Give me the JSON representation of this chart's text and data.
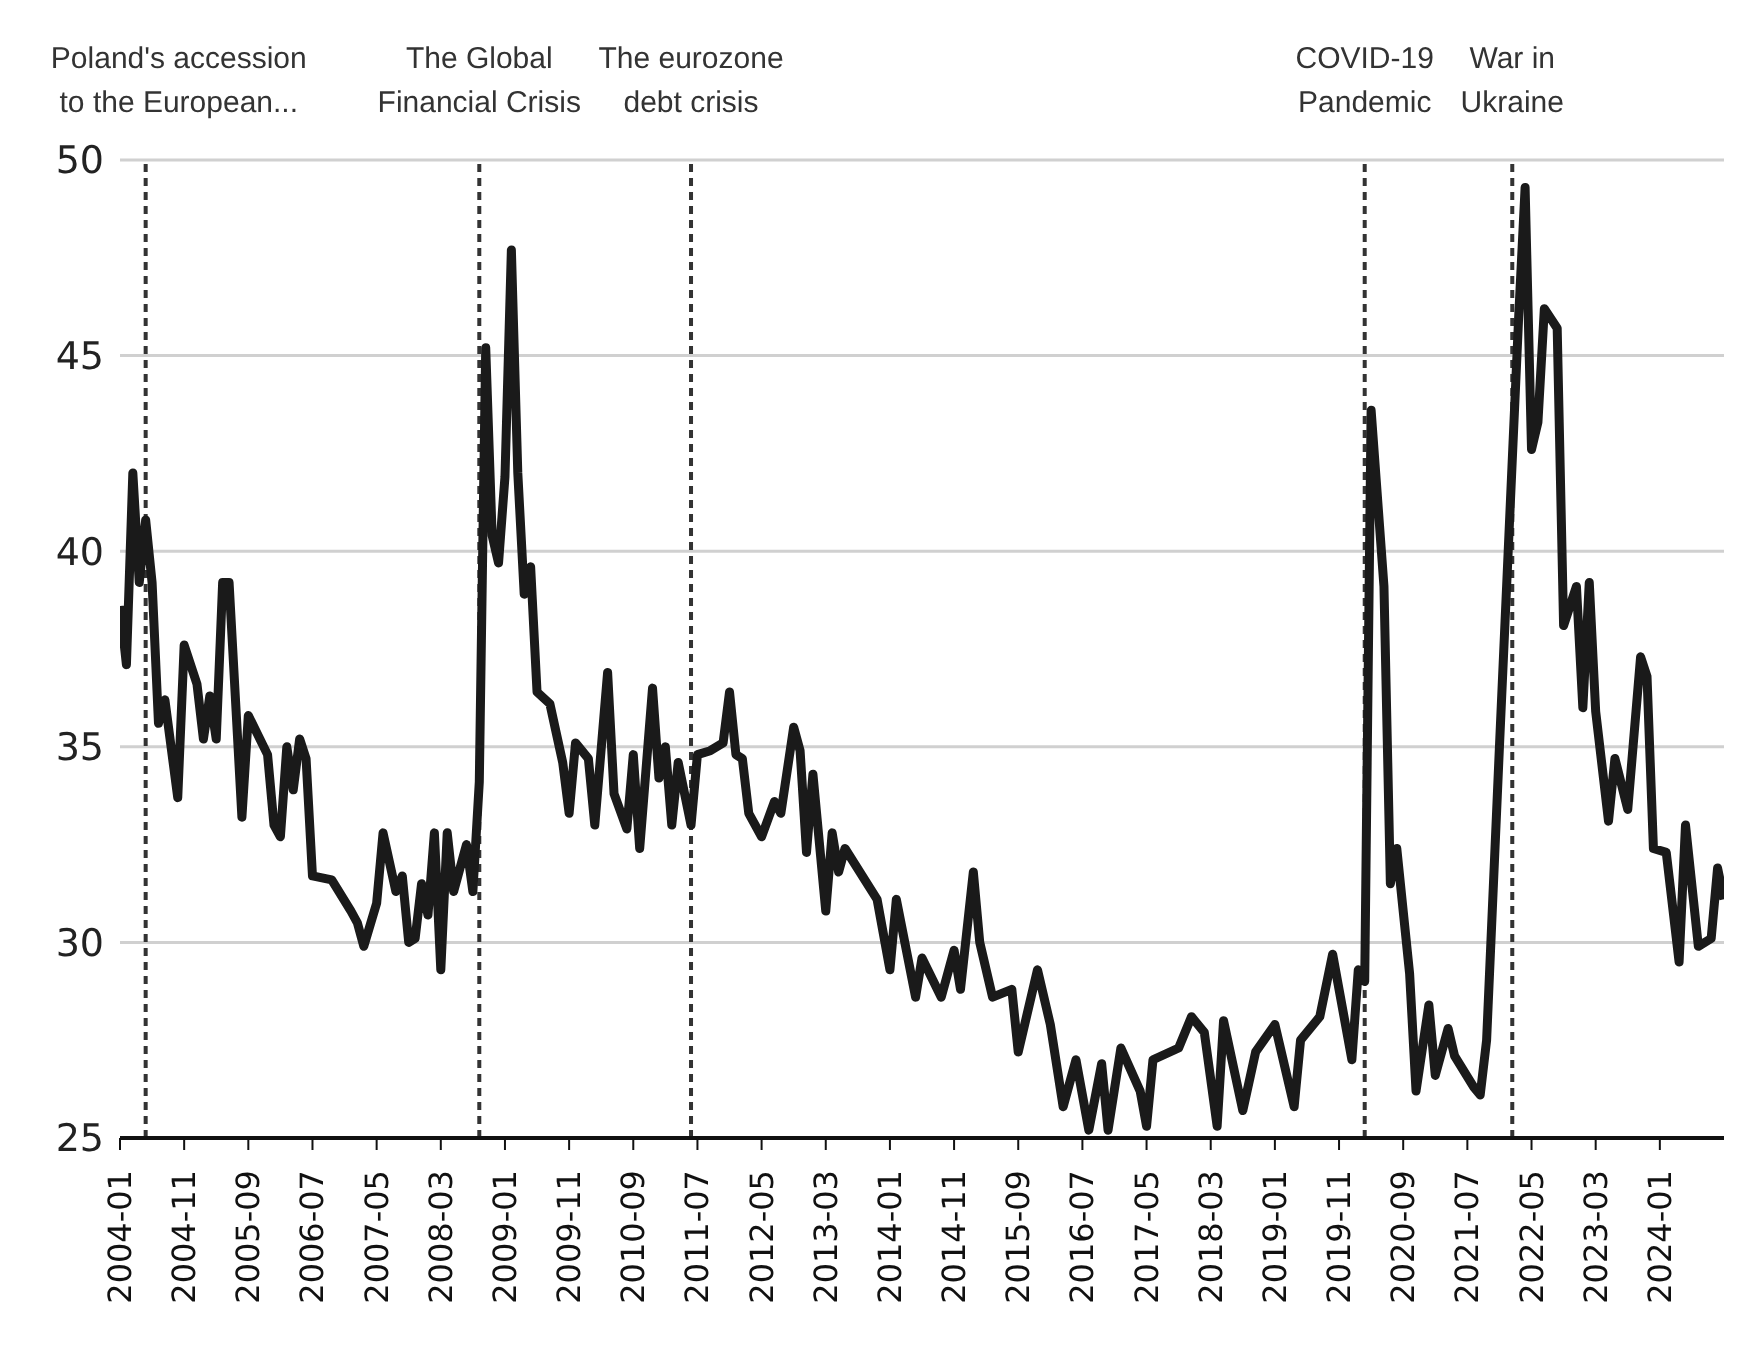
{
  "chart_data": {
    "type": "line",
    "x": [
      "2004-01",
      "2004-02",
      "2004-03",
      "2004-04",
      "2004-05",
      "2004-06",
      "2004-07",
      "2004-08",
      "2004-10",
      "2004-11",
      "2005-01",
      "2005-02",
      "2005-03",
      "2005-04",
      "2005-05",
      "2005-06",
      "2005-08",
      "2005-09",
      "2005-12",
      "2006-01",
      "2006-02",
      "2006-03",
      "2006-04",
      "2006-05",
      "2006-06",
      "2006-07",
      "2006-10",
      "2007-01",
      "2007-02",
      "2007-03",
      "2007-05",
      "2007-06",
      "2007-08",
      "2007-09",
      "2007-10",
      "2007-11",
      "2007-12",
      "2008-01",
      "2008-02",
      "2008-03",
      "2008-04",
      "2008-05",
      "2008-07",
      "2008-08",
      "2008-09",
      "2008-10",
      "2008-11",
      "2008-12",
      "2009-01",
      "2009-02",
      "2009-03",
      "2009-04",
      "2009-05",
      "2009-06",
      "2009-08",
      "2009-10",
      "2009-11",
      "2009-12",
      "2010-02",
      "2010-03",
      "2010-05",
      "2010-06",
      "2010-08",
      "2010-09",
      "2010-10",
      "2010-12",
      "2011-01",
      "2011-02",
      "2011-03",
      "2011-04",
      "2011-06",
      "2011-07",
      "2011-09",
      "2011-11",
      "2011-12",
      "2012-01",
      "2012-02",
      "2012-03",
      "2012-05",
      "2012-07",
      "2012-08",
      "2012-10",
      "2012-11",
      "2012-12",
      "2013-01",
      "2013-03",
      "2013-04",
      "2013-05",
      "2013-06",
      "2013-11",
      "2014-01",
      "2014-02",
      "2014-05",
      "2014-06",
      "2014-09",
      "2014-11",
      "2014-12",
      "2015-02",
      "2015-03",
      "2015-05",
      "2015-08",
      "2015-09",
      "2015-12",
      "2016-02",
      "2016-04",
      "2016-06",
      "2016-08",
      "2016-10",
      "2016-11",
      "2017-01",
      "2017-04",
      "2017-05",
      "2017-06",
      "2017-10",
      "2017-12",
      "2018-02",
      "2018-04",
      "2018-05",
      "2018-08",
      "2018-10",
      "2019-01",
      "2019-04",
      "2019-05",
      "2019-08",
      "2019-10",
      "2020-01",
      "2020-02",
      "2020-03",
      "2020-04",
      "2020-06",
      "2020-07",
      "2020-08",
      "2020-10",
      "2020-11",
      "2021-01",
      "2021-02",
      "2021-04",
      "2021-05",
      "2021-08",
      "2021-09",
      "2021-10",
      "2021-12",
      "2022-03",
      "2022-04",
      "2022-05",
      "2022-06",
      "2022-07",
      "2022-09",
      "2022-10",
      "2022-12",
      "2023-01",
      "2023-02",
      "2023-03",
      "2023-05",
      "2023-06",
      "2023-08",
      "2023-10",
      "2023-11",
      "2023-12",
      "2024-02",
      "2024-04",
      "2024-05",
      "2024-07",
      "2024-09",
      "2024-10",
      "2024-11"
    ],
    "series": [
      {
        "color": "#1a1a1a",
        "values": [
          38.6,
          37.1,
          42.0,
          39.2,
          40.8,
          39.2,
          35.6,
          36.2,
          33.7,
          37.6,
          36.6,
          35.2,
          36.3,
          35.2,
          39.2,
          39.2,
          33.2,
          35.8,
          34.8,
          33.0,
          32.7,
          35.0,
          33.9,
          35.2,
          34.7,
          31.7,
          31.6,
          30.8,
          30.5,
          29.9,
          31.0,
          32.8,
          31.3,
          31.7,
          30.0,
          30.1,
          31.5,
          30.7,
          32.8,
          29.3,
          32.8,
          31.3,
          32.5,
          31.3,
          34.1,
          45.2,
          40.4,
          39.7,
          41.9,
          47.7,
          42.0,
          38.9,
          39.6,
          36.4,
          36.1,
          34.6,
          33.3,
          35.1,
          34.7,
          33.0,
          36.9,
          33.8,
          32.9,
          34.8,
          32.4,
          36.5,
          34.2,
          35.0,
          33.0,
          34.6,
          33.0,
          34.8,
          34.9,
          35.1,
          36.4,
          34.8,
          34.7,
          33.3,
          32.7,
          33.6,
          33.3,
          35.5,
          34.9,
          32.3,
          34.3,
          30.8,
          32.8,
          31.8,
          32.4,
          31.1,
          29.3,
          31.1,
          28.6,
          29.6,
          28.6,
          29.8,
          28.8,
          31.8,
          30.0,
          28.6,
          28.8,
          27.2,
          29.3,
          27.9,
          25.8,
          27.0,
          25.2,
          26.9,
          25.2,
          27.3,
          26.2,
          25.3,
          27.0,
          27.3,
          28.1,
          27.7,
          25.3,
          28.0,
          25.7,
          27.2,
          27.9,
          25.8,
          27.5,
          28.1,
          29.7,
          27.0,
          29.3,
          29.0,
          43.6,
          39.1,
          31.5,
          32.4,
          29.2,
          26.2,
          28.4,
          26.6,
          27.8,
          27.1,
          26.3,
          26.1,
          27.5,
          35.0,
          46.0,
          49.3,
          42.6,
          43.3,
          46.2,
          45.7,
          38.1,
          39.1,
          36.0,
          39.2,
          35.9,
          33.1,
          34.7,
          33.4,
          37.3,
          36.8,
          32.4,
          32.3,
          29.5,
          33.0,
          29.9,
          30.1,
          31.9,
          31.1
        ]
      }
    ],
    "xlim": [
      "2004-01",
      "2024-11"
    ],
    "xticks": [
      "2004-01",
      "2004-11",
      "2005-09",
      "2006-07",
      "2007-05",
      "2008-03",
      "2009-01",
      "2009-11",
      "2010-09",
      "2011-07",
      "2012-05",
      "2013-03",
      "2014-01",
      "2014-11",
      "2015-09",
      "2016-07",
      "2017-05",
      "2018-03",
      "2019-01",
      "2019-11",
      "2020-09",
      "2021-07",
      "2022-05",
      "2023-03",
      "2024-01"
    ],
    "ylim": [
      25,
      50
    ],
    "yticks": [
      25,
      30,
      35,
      40,
      45,
      50
    ],
    "grid": "y",
    "line_style": "solid",
    "ref_lines": [
      {
        "axis": "x",
        "value": "2004-05",
        "label": "Poland's accession to the European...",
        "color": "#333333",
        "line_style": "dashed"
      },
      {
        "axis": "x",
        "value": "2008-09",
        "label": "The Global Financial Crisis",
        "color": "#333333",
        "line_style": "dashed"
      },
      {
        "axis": "x",
        "value": "2011-06",
        "label": "The eurozone debt crisis",
        "color": "#333333",
        "line_style": "dashed"
      },
      {
        "axis": "x",
        "value": "2020-03",
        "label": "COVID-19 Pandemic",
        "color": "#333333",
        "line_style": "dashed"
      },
      {
        "axis": "x",
        "value": "2022-02",
        "label": "War in Ukraine",
        "color": "#333333",
        "line_style": "dashed"
      }
    ]
  }
}
